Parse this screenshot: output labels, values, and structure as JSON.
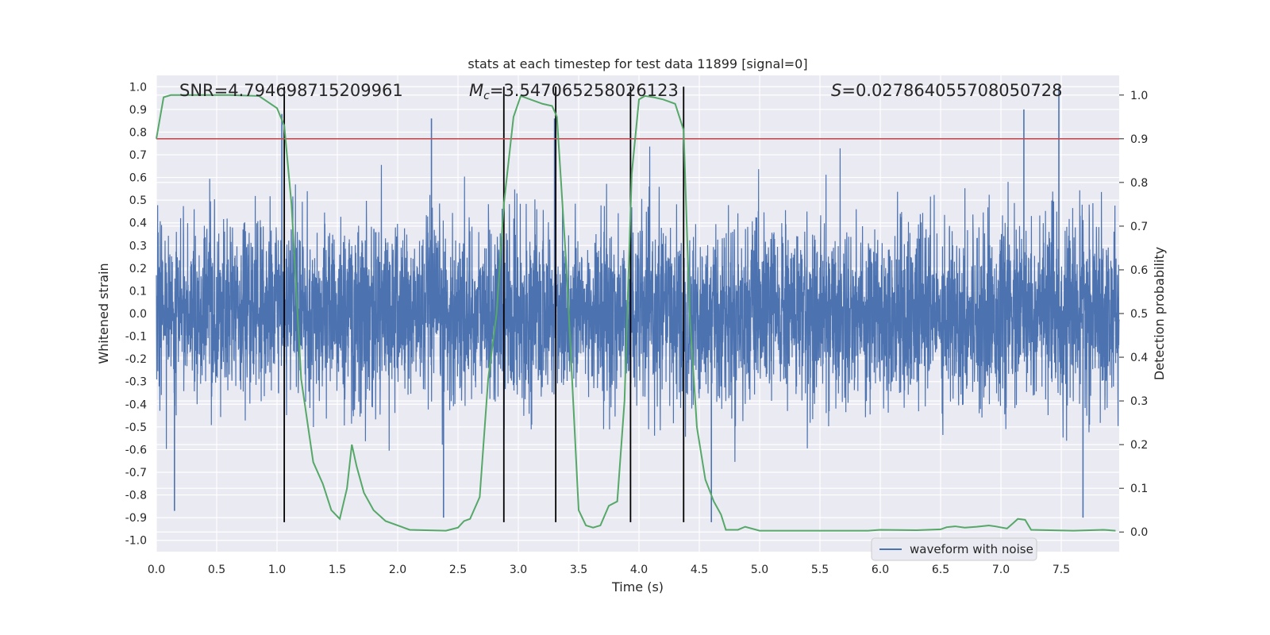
{
  "chart_data": {
    "type": "line",
    "title": "stats at each timestep for test data 11899 [signal=0]",
    "xlabel": "Time (s)",
    "ylabel": "Whitened strain",
    "y2label": "Detection probability",
    "xlim": [
      0.0,
      7.98
    ],
    "ylim": [
      -1.05,
      1.05
    ],
    "y2lim": [
      -0.045,
      1.045
    ],
    "xticks": [
      "0.0",
      "0.5",
      "1.0",
      "1.5",
      "2.0",
      "2.5",
      "3.0",
      "3.5",
      "4.0",
      "4.5",
      "5.0",
      "5.5",
      "6.0",
      "6.5",
      "7.0",
      "7.5"
    ],
    "yticks": [
      "1.0",
      "0.9",
      "0.8",
      "0.7",
      "0.6",
      "0.5",
      "0.4",
      "0.3",
      "0.2",
      "0.1",
      "0.0",
      "-0.1",
      "-0.2",
      "-0.3",
      "-0.4",
      "-0.5",
      "-0.6",
      "-0.7",
      "-0.8",
      "-0.9",
      "-1.0"
    ],
    "y2ticks": [
      "1.0",
      "0.9",
      "0.8",
      "0.7",
      "0.6",
      "0.5",
      "0.4",
      "0.3",
      "0.2",
      "0.1",
      "0.0"
    ],
    "grid": true,
    "legend_position": "lower-right",
    "colors": {
      "waveform": "#4c72b0",
      "probability": "#55a868",
      "threshold": "#c44e52",
      "markers": "#000000",
      "background": "#eaeaf2"
    },
    "annotations": {
      "snr": "SNR=4.794698715209961",
      "mc_symbol": "M",
      "mc_sub": "c",
      "mc_value": "=3.547065258026123",
      "s_symbol": "S",
      "s_value": "=0.027864055708050728"
    },
    "series": [
      {
        "name": "waveform with noise",
        "axis": "left",
        "style": "dense-noise",
        "envelope_typical": 0.35,
        "notable_peaks": [
          {
            "x": 1.04,
            "y": 0.88
          },
          {
            "x": 2.28,
            "y": 0.86
          },
          {
            "x": 3.3,
            "y": 0.86
          },
          {
            "x": 7.48,
            "y": 1.0
          },
          {
            "x": 7.19,
            "y": 0.9
          },
          {
            "x": 2.38,
            "y": -0.9
          },
          {
            "x": 7.68,
            "y": -0.9
          },
          {
            "x": 4.6,
            "y": -0.92
          },
          {
            "x": 0.15,
            "y": -0.87
          }
        ]
      },
      {
        "name": "detection probability",
        "axis": "right",
        "x": [
          0.0,
          0.06,
          0.12,
          0.3,
          0.6,
          0.85,
          1.0,
          1.06,
          1.12,
          1.2,
          1.3,
          1.38,
          1.45,
          1.52,
          1.58,
          1.62,
          1.66,
          1.72,
          1.8,
          1.9,
          2.1,
          2.4,
          2.5,
          2.55,
          2.6,
          2.68,
          2.75,
          2.82,
          2.88,
          2.96,
          3.02,
          3.1,
          3.2,
          3.28,
          3.32,
          3.4,
          3.5,
          3.56,
          3.62,
          3.68,
          3.75,
          3.82,
          3.88,
          3.94,
          4.0,
          4.05,
          4.12,
          4.2,
          4.3,
          4.37,
          4.42,
          4.48,
          4.55,
          4.62,
          4.68,
          4.72,
          4.82,
          4.88,
          5.0,
          5.5,
          5.9,
          6.0,
          6.3,
          6.5,
          6.55,
          6.62,
          6.7,
          6.8,
          6.9,
          6.95,
          7.05,
          7.1,
          7.14,
          7.2,
          7.25,
          7.6,
          7.85,
          7.95
        ],
        "y": [
          0.9,
          0.995,
          1.0,
          1.0,
          1.0,
          0.998,
          0.97,
          0.93,
          0.75,
          0.35,
          0.16,
          0.11,
          0.05,
          0.03,
          0.1,
          0.2,
          0.15,
          0.09,
          0.05,
          0.025,
          0.005,
          0.003,
          0.01,
          0.025,
          0.03,
          0.08,
          0.35,
          0.5,
          0.75,
          0.95,
          0.998,
          0.99,
          0.98,
          0.975,
          0.95,
          0.6,
          0.05,
          0.015,
          0.01,
          0.015,
          0.06,
          0.07,
          0.3,
          0.82,
          0.99,
          0.998,
          0.995,
          0.99,
          0.98,
          0.92,
          0.5,
          0.24,
          0.12,
          0.07,
          0.04,
          0.005,
          0.005,
          0.012,
          0.003,
          0.003,
          0.003,
          0.005,
          0.004,
          0.006,
          0.011,
          0.013,
          0.01,
          0.012,
          0.015,
          0.013,
          0.008,
          0.02,
          0.03,
          0.028,
          0.005,
          0.003,
          0.005,
          0.003
        ]
      },
      {
        "name": "threshold",
        "axis": "right",
        "y": 0.9
      },
      {
        "name": "marker-lines",
        "axis": "left",
        "x": [
          1.06,
          2.88,
          3.31,
          3.93,
          4.37
        ],
        "y_range": [
          -0.92,
          1.0
        ]
      }
    ]
  }
}
